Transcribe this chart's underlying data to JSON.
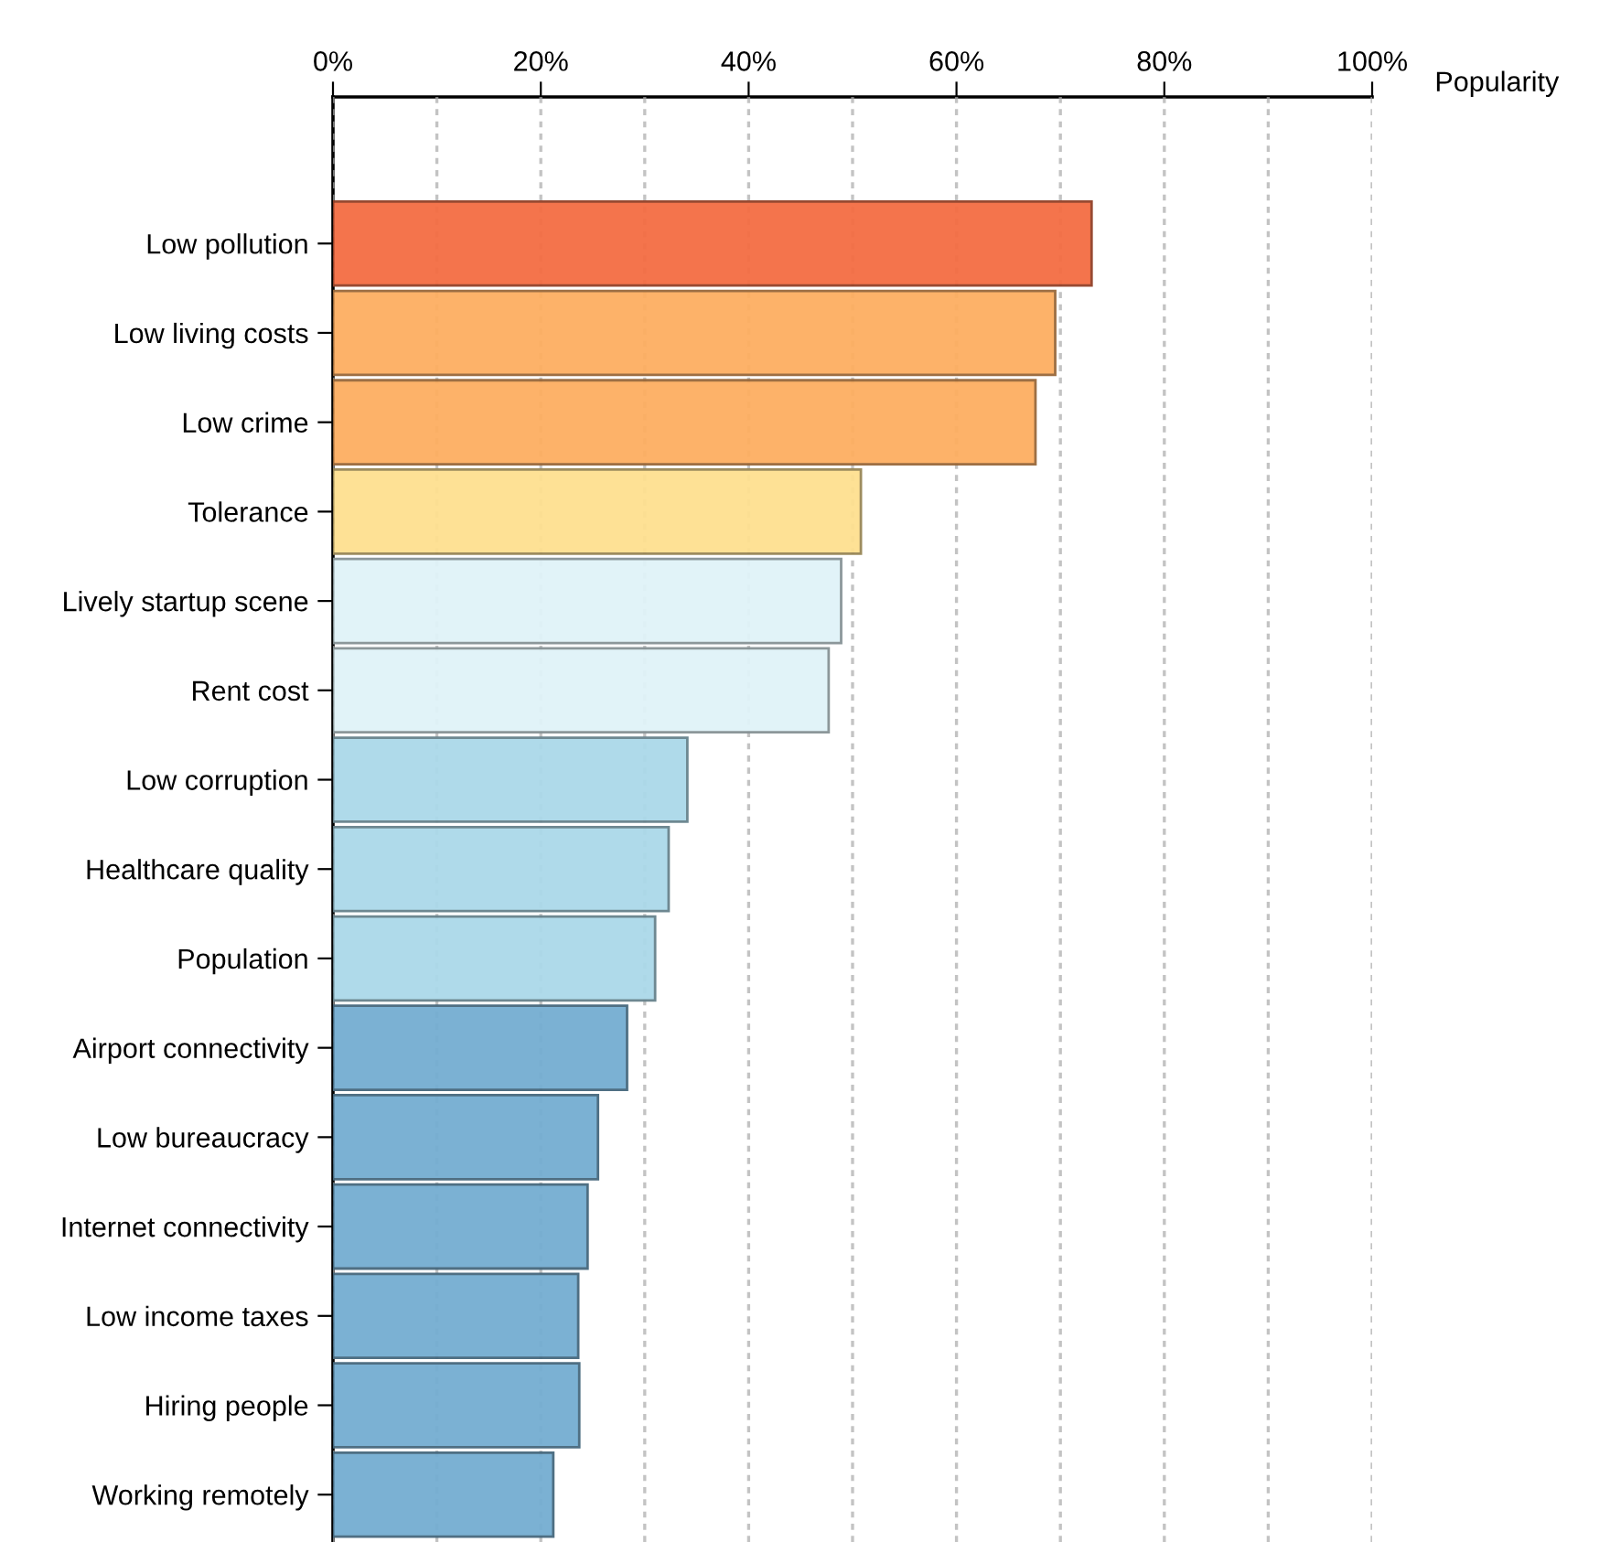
{
  "chart_data": {
    "type": "bar",
    "orientation": "horizontal",
    "xlabel": "Popularity",
    "categories": [
      "Low pollution",
      "Low living costs",
      "Low crime",
      "Tolerance",
      "Lively startup scene",
      "Rent cost",
      "Low corruption",
      "Healthcare quality",
      "Population",
      "Airport connectivity",
      "Low bureaucracy",
      "Internet connectivity",
      "Low income taxes",
      "Hiring people",
      "Working remotely"
    ],
    "values": [
      73,
      69.5,
      67.6,
      50.8,
      48.9,
      47.7,
      34.1,
      32.3,
      31.0,
      28.3,
      25.5,
      24.5,
      23.6,
      23.7,
      21.2
    ],
    "colors": [
      "#f46d43",
      "#fdae61",
      "#fdae61",
      "#fee090",
      "#e0f3f8",
      "#e0f3f8",
      "#abd9e9",
      "#abd9e9",
      "#abd9e9",
      "#74add1",
      "#74add1",
      "#74add1",
      "#74add1",
      "#74add1",
      "#74add1"
    ],
    "xlim": [
      0,
      100
    ],
    "xticks": [
      {
        "value": 0,
        "label": "0%"
      },
      {
        "value": 10,
        "label": null
      },
      {
        "value": 20,
        "label": "20%"
      },
      {
        "value": 30,
        "label": null
      },
      {
        "value": 40,
        "label": "40%"
      },
      {
        "value": 50,
        "label": null
      },
      {
        "value": 60,
        "label": "60%"
      },
      {
        "value": 70,
        "label": null
      },
      {
        "value": 80,
        "label": "80%"
      },
      {
        "value": 90,
        "label": null
      },
      {
        "value": 100,
        "label": "100%"
      }
    ],
    "grid": "x",
    "legend": false
  }
}
